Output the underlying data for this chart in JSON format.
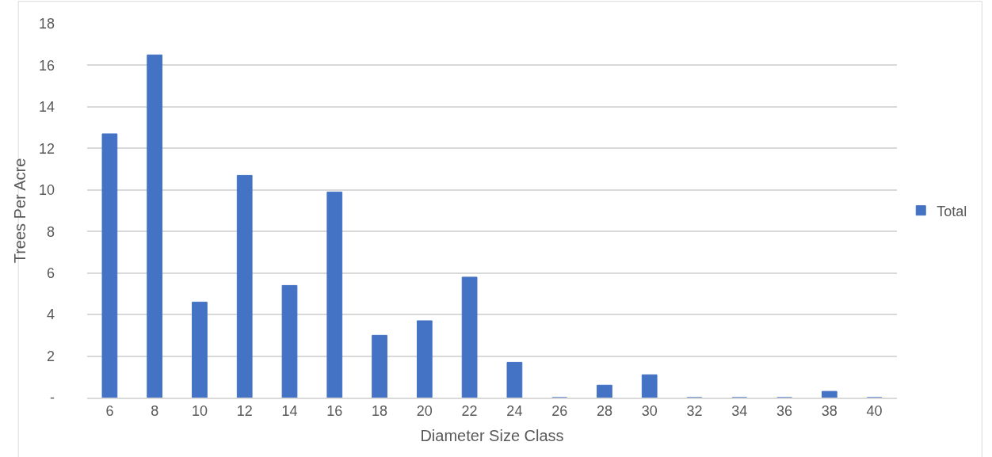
{
  "chart_data": {
    "type": "bar",
    "xlabel": "Diameter Size Class",
    "ylabel": "Trees Per Acre",
    "categories": [
      "6",
      "8",
      "10",
      "12",
      "14",
      "16",
      "18",
      "20",
      "22",
      "24",
      "26",
      "28",
      "30",
      "32",
      "34",
      "36",
      "38",
      "40"
    ],
    "series": [
      {
        "name": "Total",
        "color": "#4472c4",
        "values": [
          12.7,
          16.5,
          4.6,
          10.7,
          5.4,
          9.9,
          3.0,
          3.7,
          5.8,
          1.7,
          0,
          0.6,
          1.1,
          0,
          0,
          0,
          0.3,
          0
        ]
      }
    ],
    "ylim": [
      0,
      18
    ],
    "yticks": [
      {
        "value": 0,
        "label": "-"
      },
      2,
      4,
      6,
      8,
      10,
      12,
      14,
      16,
      18
    ],
    "grid": "y",
    "legend": "right"
  }
}
